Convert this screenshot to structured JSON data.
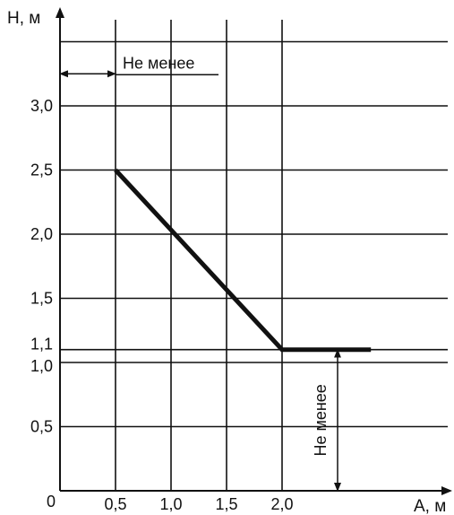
{
  "chart_data": {
    "type": "line",
    "title": "",
    "ylabel": "H, м",
    "xlabel": "A, м",
    "origin_label": "0",
    "xlim": [
      0,
      3.5
    ],
    "ylim": [
      0,
      3.5
    ],
    "x_ticks": [
      0.5,
      1.0,
      1.5,
      2.0
    ],
    "x_tick_labels": [
      "0,5",
      "1,0",
      "1,5",
      "2,0"
    ],
    "y_ticks": [
      0.5,
      1.0,
      1.1,
      1.5,
      2.0,
      2.5,
      3.0
    ],
    "y_tick_labels": [
      "0,5",
      "1,0",
      "1,1",
      "1,5",
      "2,0",
      "2,5",
      "3,0"
    ],
    "horizontal_gridlines": [
      0.5,
      1.0,
      1.1,
      1.5,
      2.0,
      2.5,
      3.0,
      3.5
    ],
    "vertical_gridlines": [
      0.5,
      1.0,
      1.5,
      2.0
    ],
    "grid": true,
    "legend": "none",
    "series": [
      {
        "x": [
          0.5,
          2.0,
          2.8
        ],
        "y": [
          2.5,
          1.1,
          1.1
        ]
      }
    ],
    "annotations": [
      {
        "text": "Не менее",
        "orientation": "horizontal",
        "from": [
          0,
          3.25
        ],
        "to": [
          0.5,
          3.25
        ]
      },
      {
        "text": "Не менее",
        "orientation": "vertical",
        "from": [
          2.5,
          0
        ],
        "to": [
          2.5,
          1.1
        ]
      }
    ]
  }
}
